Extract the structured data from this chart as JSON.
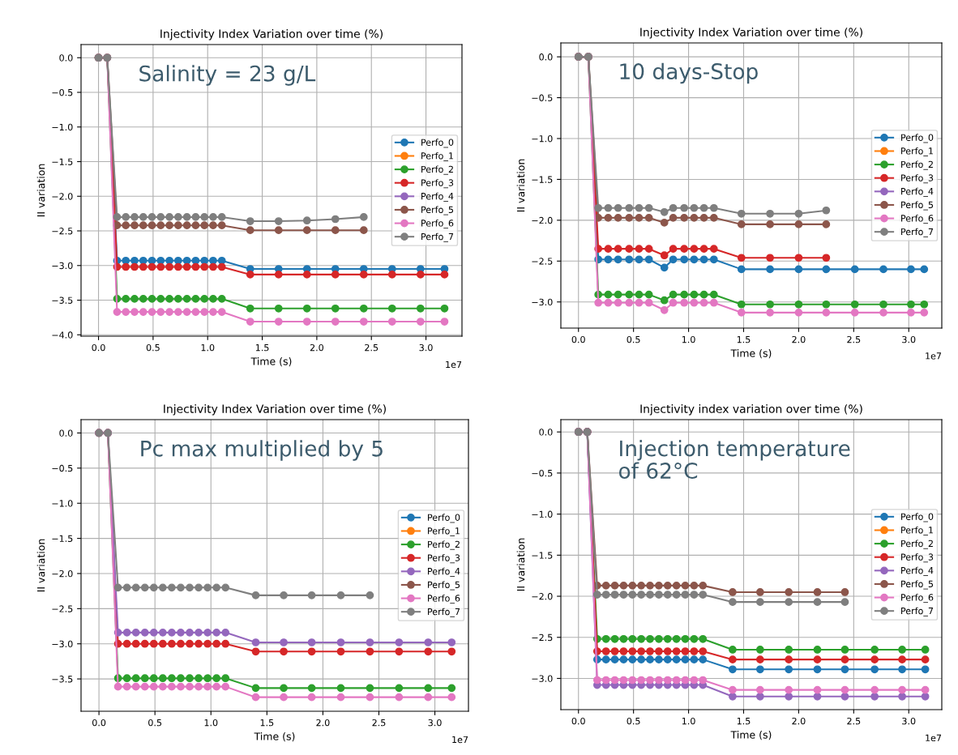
{
  "chart_data": [
    {
      "type": "line",
      "title": "Injectivity Index Variation over time (%)",
      "xlabel": "Time (s)",
      "ylabel": "II variation",
      "marker": "circle",
      "line_style": "solid",
      "grid": true,
      "legend": "right",
      "annotations": [
        "Salinity = 23 g/L",
        "1e7"
      ],
      "x": [
        0,
        0.08,
        0.17,
        0.25,
        0.33,
        0.41,
        0.49,
        0.57,
        0.65,
        0.73,
        0.81,
        0.89,
        0.97,
        1.05,
        1.13,
        1.39,
        1.65,
        1.91,
        2.17,
        2.43,
        2.69,
        2.95,
        3.17
      ],
      "xlim": [
        -0.16,
        3.33
      ],
      "ylim": [
        -4.02,
        0.19
      ],
      "xticks": [
        {
          "value": 0,
          "label": "0.0"
        },
        {
          "value": 0.5,
          "label": "0.5"
        },
        {
          "value": 1,
          "label": "1.0"
        },
        {
          "value": 1.5,
          "label": "1.5"
        },
        {
          "value": 2,
          "label": "2.0"
        },
        {
          "value": 2.5,
          "label": "2.5"
        },
        {
          "value": 3,
          "label": "3.0"
        }
      ],
      "yticks": [
        {
          "value": 0,
          "label": "0.0"
        },
        {
          "value": -0.5,
          "label": "−0.5"
        },
        {
          "value": -1,
          "label": "−1.0"
        },
        {
          "value": -1.5,
          "label": "−1.5"
        },
        {
          "value": -2,
          "label": "−2.0"
        },
        {
          "value": -2.5,
          "label": "−2.5"
        },
        {
          "value": -3,
          "label": "−3.0"
        },
        {
          "value": -3.5,
          "label": "−3.5"
        },
        {
          "value": -4,
          "label": "−4.0"
        }
      ],
      "series": [
        {
          "name": "Perfo_0",
          "color": "#1f77b4",
          "values": [
            0,
            0,
            -2.93,
            -2.93,
            -2.93,
            -2.93,
            -2.93,
            -2.93,
            -2.93,
            -2.93,
            -2.93,
            -2.93,
            -2.93,
            -2.93,
            -2.93,
            -3.05,
            -3.05,
            -3.05,
            -3.05,
            -3.05,
            -3.05,
            -3.05,
            -3.05
          ]
        },
        {
          "name": "Perfo_1",
          "color": "#ff7f0e",
          "values": [
            null,
            null,
            null,
            null,
            null,
            null,
            null,
            null,
            null,
            null,
            null,
            null,
            null,
            null,
            null,
            null,
            null,
            null,
            null,
            null,
            null,
            null,
            null
          ]
        },
        {
          "name": "Perfo_2",
          "color": "#2ca02c",
          "values": [
            0,
            0,
            -3.48,
            -3.48,
            -3.48,
            -3.48,
            -3.48,
            -3.48,
            -3.48,
            -3.48,
            -3.48,
            -3.48,
            -3.48,
            -3.48,
            -3.48,
            -3.62,
            -3.62,
            -3.62,
            -3.62,
            -3.62,
            -3.62,
            -3.62,
            -3.62
          ]
        },
        {
          "name": "Perfo_3",
          "color": "#d62728",
          "values": [
            0,
            0,
            -3.02,
            -3.02,
            -3.02,
            -3.02,
            -3.02,
            -3.02,
            -3.02,
            -3.02,
            -3.02,
            -3.02,
            -3.02,
            -3.02,
            -3.02,
            -3.13,
            -3.13,
            -3.13,
            -3.13,
            -3.13,
            -3.13,
            -3.13,
            -3.13
          ]
        },
        {
          "name": "Perfo_4",
          "color": "#9467bd",
          "values": [
            null,
            null,
            null,
            null,
            null,
            null,
            null,
            null,
            null,
            null,
            null,
            null,
            null,
            null,
            null,
            null,
            null,
            null,
            null,
            null,
            null,
            null,
            null
          ]
        },
        {
          "name": "Perfo_5",
          "color": "#8c564b",
          "values": [
            0,
            0,
            -2.42,
            -2.42,
            -2.42,
            -2.42,
            -2.42,
            -2.42,
            -2.42,
            -2.42,
            -2.42,
            -2.42,
            -2.42,
            -2.42,
            -2.42,
            -2.49,
            -2.49,
            -2.49,
            -2.49,
            -2.49,
            null,
            null,
            null
          ]
        },
        {
          "name": "Perfo_6",
          "color": "#e377c2",
          "values": [
            0,
            0,
            -3.67,
            -3.67,
            -3.67,
            -3.67,
            -3.67,
            -3.67,
            -3.67,
            -3.67,
            -3.67,
            -3.67,
            -3.67,
            -3.67,
            -3.67,
            -3.81,
            -3.81,
            -3.81,
            -3.81,
            -3.81,
            -3.81,
            -3.81,
            -3.81
          ]
        },
        {
          "name": "Perfo_7",
          "color": "#7f7f7f",
          "values": [
            0,
            0,
            -2.3,
            -2.3,
            -2.3,
            -2.3,
            -2.3,
            -2.3,
            -2.3,
            -2.3,
            -2.3,
            -2.3,
            -2.3,
            -2.3,
            -2.3,
            -2.36,
            -2.36,
            -2.35,
            -2.33,
            -2.3,
            null,
            null,
            null
          ]
        }
      ]
    },
    {
      "type": "line",
      "title": "Injectivity Index Variation over time (%)",
      "xlabel": "Time (s)",
      "ylabel": "II variation",
      "marker": "circle",
      "line_style": "solid",
      "grid": true,
      "legend": "right",
      "annotations": [
        "10 days-Stop",
        "1e7"
      ],
      "x": [
        0,
        0.09,
        0.18,
        0.27,
        0.36,
        0.46,
        0.55,
        0.64,
        0.78,
        0.86,
        0.96,
        1.05,
        1.14,
        1.23,
        1.48,
        1.74,
        2.0,
        2.25,
        2.51,
        2.77,
        3.02,
        3.14
      ],
      "xlim": [
        -0.16,
        3.3
      ],
      "ylim": [
        -3.32,
        0.17
      ],
      "xticks": [
        {
          "value": 0,
          "label": "0.0"
        },
        {
          "value": 0.5,
          "label": "0.5"
        },
        {
          "value": 1,
          "label": "1.0"
        },
        {
          "value": 1.5,
          "label": "1.5"
        },
        {
          "value": 2,
          "label": "2.0"
        },
        {
          "value": 2.5,
          "label": "2.5"
        },
        {
          "value": 3,
          "label": "3.0"
        }
      ],
      "yticks": [
        {
          "value": 0,
          "label": "0.0"
        },
        {
          "value": -0.5,
          "label": "−0.5"
        },
        {
          "value": -1,
          "label": "−1.0"
        },
        {
          "value": -1.5,
          "label": "−1.5"
        },
        {
          "value": -2,
          "label": "−2.0"
        },
        {
          "value": -2.5,
          "label": "−2.5"
        },
        {
          "value": -3,
          "label": "−3.0"
        }
      ],
      "series": [
        {
          "name": "Perfo_0",
          "color": "#1f77b4",
          "values": [
            0,
            0,
            -2.48,
            -2.48,
            -2.48,
            -2.48,
            -2.48,
            -2.48,
            -2.58,
            -2.48,
            -2.48,
            -2.48,
            -2.48,
            -2.48,
            -2.6,
            -2.6,
            -2.6,
            -2.6,
            -2.6,
            -2.6,
            -2.6,
            -2.6
          ]
        },
        {
          "name": "Perfo_1",
          "color": "#ff7f0e",
          "values": [
            null,
            null,
            null,
            null,
            null,
            null,
            null,
            null,
            null,
            null,
            null,
            null,
            null,
            null,
            null,
            null,
            null,
            null,
            null,
            null,
            null,
            null
          ]
        },
        {
          "name": "Perfo_2",
          "color": "#2ca02c",
          "values": [
            0,
            0,
            -2.91,
            -2.91,
            -2.91,
            -2.91,
            -2.91,
            -2.91,
            -2.98,
            -2.91,
            -2.91,
            -2.91,
            -2.91,
            -2.91,
            -3.03,
            -3.03,
            -3.03,
            -3.03,
            -3.03,
            -3.03,
            -3.03,
            -3.03
          ]
        },
        {
          "name": "Perfo_3",
          "color": "#d62728",
          "values": [
            0,
            0,
            -2.35,
            -2.35,
            -2.35,
            -2.35,
            -2.35,
            -2.35,
            -2.43,
            -2.35,
            -2.35,
            -2.35,
            -2.35,
            -2.35,
            -2.46,
            -2.46,
            -2.46,
            -2.46,
            null,
            null,
            null,
            null
          ]
        },
        {
          "name": "Perfo_4",
          "color": "#9467bd",
          "values": [
            null,
            null,
            null,
            null,
            null,
            null,
            null,
            null,
            null,
            null,
            null,
            null,
            null,
            null,
            null,
            null,
            null,
            null,
            null,
            null,
            null,
            null
          ]
        },
        {
          "name": "Perfo_5",
          "color": "#8c564b",
          "values": [
            0,
            0,
            -1.97,
            -1.97,
            -1.97,
            -1.97,
            -1.97,
            -1.97,
            -2.03,
            -1.97,
            -1.97,
            -1.97,
            -1.97,
            -1.97,
            -2.05,
            -2.05,
            -2.05,
            -2.05,
            null,
            null,
            null,
            null
          ]
        },
        {
          "name": "Perfo_6",
          "color": "#e377c2",
          "values": [
            0,
            0,
            -3.01,
            -3.01,
            -3.01,
            -3.01,
            -3.01,
            -3.01,
            -3.1,
            -3.01,
            -3.01,
            -3.01,
            -3.01,
            -3.01,
            -3.13,
            -3.13,
            -3.13,
            -3.13,
            -3.13,
            -3.13,
            -3.13,
            -3.13
          ]
        },
        {
          "name": "Perfo_7",
          "color": "#7f7f7f",
          "values": [
            0,
            0,
            -1.85,
            -1.85,
            -1.85,
            -1.85,
            -1.85,
            -1.85,
            -1.9,
            -1.85,
            -1.85,
            -1.85,
            -1.85,
            -1.85,
            -1.92,
            -1.92,
            -1.92,
            -1.88,
            null,
            null,
            null,
            null
          ]
        }
      ]
    },
    {
      "type": "line",
      "title": "Injectivity Index Variation over time (%)",
      "xlabel": "Time (s)",
      "ylabel": "II variation",
      "marker": "circle",
      "line_style": "solid",
      "grid": true,
      "legend": "right",
      "annotations": [
        "Pc max multiplied by 5",
        "1e7"
      ],
      "x": [
        0,
        0.08,
        0.17,
        0.25,
        0.33,
        0.41,
        0.49,
        0.57,
        0.65,
        0.73,
        0.81,
        0.89,
        0.97,
        1.05,
        1.13,
        1.4,
        1.65,
        1.9,
        2.16,
        2.42,
        2.68,
        2.94,
        3.15
      ],
      "xlim": [
        -0.16,
        3.3
      ],
      "ylim": [
        -3.96,
        0.19
      ],
      "xticks": [
        {
          "value": 0,
          "label": "0.0"
        },
        {
          "value": 0.5,
          "label": "0.5"
        },
        {
          "value": 1,
          "label": "1.0"
        },
        {
          "value": 1.5,
          "label": "1.5"
        },
        {
          "value": 2,
          "label": "2.0"
        },
        {
          "value": 2.5,
          "label": "2.5"
        },
        {
          "value": 3,
          "label": "3.0"
        }
      ],
      "yticks": [
        {
          "value": 0,
          "label": "0.0"
        },
        {
          "value": -0.5,
          "label": "−0.5"
        },
        {
          "value": -1,
          "label": "−1.0"
        },
        {
          "value": -1.5,
          "label": "−1.5"
        },
        {
          "value": -2,
          "label": "−2.0"
        },
        {
          "value": -2.5,
          "label": "−2.5"
        },
        {
          "value": -3,
          "label": "−3.0"
        },
        {
          "value": -3.5,
          "label": "−3.5"
        }
      ],
      "series": [
        {
          "name": "Perfo_0",
          "color": "#1f77b4",
          "values": [
            null,
            null,
            null,
            null,
            null,
            null,
            null,
            null,
            null,
            null,
            null,
            null,
            null,
            null,
            null,
            null,
            null,
            null,
            null,
            null,
            null,
            null,
            null
          ]
        },
        {
          "name": "Perfo_1",
          "color": "#ff7f0e",
          "values": [
            null,
            null,
            null,
            null,
            null,
            null,
            null,
            null,
            null,
            null,
            null,
            null,
            null,
            null,
            null,
            null,
            null,
            null,
            null,
            null,
            null,
            null,
            null
          ]
        },
        {
          "name": "Perfo_2",
          "color": "#2ca02c",
          "values": [
            0,
            0,
            -3.49,
            -3.49,
            -3.49,
            -3.49,
            -3.49,
            -3.49,
            -3.49,
            -3.49,
            -3.49,
            -3.49,
            -3.49,
            -3.49,
            -3.49,
            -3.63,
            -3.63,
            -3.63,
            -3.63,
            -3.63,
            -3.63,
            -3.63,
            -3.63
          ]
        },
        {
          "name": "Perfo_3",
          "color": "#d62728",
          "values": [
            0,
            0,
            -3.0,
            -3.0,
            -3.0,
            -3.0,
            -3.0,
            -3.0,
            -3.0,
            -3.0,
            -3.0,
            -3.0,
            -3.0,
            -3.0,
            -3.0,
            -3.11,
            -3.11,
            -3.11,
            -3.11,
            -3.11,
            -3.11,
            -3.11,
            -3.11
          ]
        },
        {
          "name": "Perfo_4",
          "color": "#9467bd",
          "values": [
            0,
            0,
            -2.84,
            -2.84,
            -2.84,
            -2.84,
            -2.84,
            -2.84,
            -2.84,
            -2.84,
            -2.84,
            -2.84,
            -2.84,
            -2.84,
            -2.84,
            -2.98,
            -2.98,
            -2.98,
            -2.98,
            -2.98,
            -2.98,
            -2.98,
            -2.98
          ]
        },
        {
          "name": "Perfo_5",
          "color": "#8c564b",
          "values": [
            null,
            null,
            null,
            null,
            null,
            null,
            null,
            null,
            null,
            null,
            null,
            null,
            null,
            null,
            null,
            null,
            null,
            null,
            null,
            null,
            null,
            null,
            null
          ]
        },
        {
          "name": "Perfo_6",
          "color": "#e377c2",
          "values": [
            0,
            0,
            -3.61,
            -3.61,
            -3.61,
            -3.61,
            -3.61,
            -3.61,
            -3.61,
            -3.61,
            -3.61,
            -3.61,
            -3.61,
            -3.61,
            -3.61,
            -3.76,
            -3.76,
            -3.76,
            -3.76,
            -3.76,
            -3.76,
            -3.76,
            -3.76
          ]
        },
        {
          "name": "Perfo_7",
          "color": "#7f7f7f",
          "values": [
            0,
            0,
            -2.2,
            -2.2,
            -2.2,
            -2.2,
            -2.2,
            -2.2,
            -2.2,
            -2.2,
            -2.2,
            -2.2,
            -2.2,
            -2.2,
            -2.2,
            -2.31,
            -2.31,
            -2.31,
            -2.31,
            -2.31,
            null,
            null,
            null
          ]
        }
      ]
    },
    {
      "type": "line",
      "title": "Injectivity index variation over time (%)",
      "xlabel": "Time (s)",
      "ylabel": "II variation",
      "marker": "circle",
      "line_style": "solid",
      "grid": true,
      "legend": "right",
      "annotations": [
        "Injection temperature\nof 62°C",
        "1e7"
      ],
      "x": [
        0,
        0.08,
        0.17,
        0.25,
        0.33,
        0.41,
        0.49,
        0.57,
        0.65,
        0.73,
        0.81,
        0.89,
        0.97,
        1.05,
        1.13,
        1.4,
        1.65,
        1.91,
        2.17,
        2.42,
        2.69,
        2.94,
        3.15
      ],
      "xlim": [
        -0.16,
        3.3
      ],
      "ylim": [
        -3.38,
        0.15
      ],
      "xticks": [
        {
          "value": 0,
          "label": "0.0"
        },
        {
          "value": 0.5,
          "label": "0.5"
        },
        {
          "value": 1,
          "label": "1.0"
        },
        {
          "value": 1.5,
          "label": "1.5"
        },
        {
          "value": 2,
          "label": "2.0"
        },
        {
          "value": 2.5,
          "label": "2.5"
        },
        {
          "value": 3,
          "label": "3.0"
        }
      ],
      "yticks": [
        {
          "value": 0,
          "label": "0.0"
        },
        {
          "value": -0.5,
          "label": "−0.5"
        },
        {
          "value": -1,
          "label": "−1.0"
        },
        {
          "value": -1.5,
          "label": "−1.5"
        },
        {
          "value": -2,
          "label": "−2.0"
        },
        {
          "value": -2.5,
          "label": "−2.5"
        },
        {
          "value": -3,
          "label": "−3.0"
        }
      ],
      "series": [
        {
          "name": "Perfo_0",
          "color": "#1f77b4",
          "values": [
            0,
            0,
            -2.77,
            -2.77,
            -2.77,
            -2.77,
            -2.77,
            -2.77,
            -2.77,
            -2.77,
            -2.77,
            -2.77,
            -2.77,
            -2.77,
            -2.77,
            -2.89,
            -2.89,
            -2.89,
            -2.89,
            -2.89,
            -2.89,
            -2.89,
            -2.89
          ]
        },
        {
          "name": "Perfo_1",
          "color": "#ff7f0e",
          "values": [
            null,
            null,
            null,
            null,
            null,
            null,
            null,
            null,
            null,
            null,
            null,
            null,
            null,
            null,
            null,
            null,
            null,
            null,
            null,
            null,
            null,
            null,
            null
          ]
        },
        {
          "name": "Perfo_2",
          "color": "#2ca02c",
          "values": [
            0,
            0,
            -2.52,
            -2.52,
            -2.52,
            -2.52,
            -2.52,
            -2.52,
            -2.52,
            -2.52,
            -2.52,
            -2.52,
            -2.52,
            -2.52,
            -2.52,
            -2.65,
            -2.65,
            -2.65,
            -2.65,
            -2.65,
            -2.65,
            -2.65,
            -2.65
          ]
        },
        {
          "name": "Perfo_3",
          "color": "#d62728",
          "values": [
            0,
            0,
            -2.67,
            -2.67,
            -2.67,
            -2.67,
            -2.67,
            -2.67,
            -2.67,
            -2.67,
            -2.67,
            -2.67,
            -2.67,
            -2.67,
            -2.67,
            -2.77,
            -2.77,
            -2.77,
            -2.77,
            -2.77,
            -2.77,
            -2.77,
            -2.77
          ]
        },
        {
          "name": "Perfo_4",
          "color": "#9467bd",
          "values": [
            0,
            0,
            -3.08,
            -3.08,
            -3.08,
            -3.08,
            -3.08,
            -3.08,
            -3.08,
            -3.08,
            -3.08,
            -3.08,
            -3.08,
            -3.08,
            -3.08,
            -3.22,
            -3.22,
            -3.22,
            -3.22,
            -3.22,
            -3.22,
            -3.22,
            -3.22
          ]
        },
        {
          "name": "Perfo_5",
          "color": "#8c564b",
          "values": [
            0,
            0,
            -1.87,
            -1.87,
            -1.87,
            -1.87,
            -1.87,
            -1.87,
            -1.87,
            -1.87,
            -1.87,
            -1.87,
            -1.87,
            -1.87,
            -1.87,
            -1.95,
            -1.95,
            -1.95,
            -1.95,
            -1.95,
            null,
            null,
            null
          ]
        },
        {
          "name": "Perfo_6",
          "color": "#e377c2",
          "values": [
            0,
            0,
            -3.02,
            -3.02,
            -3.02,
            -3.02,
            -3.02,
            -3.02,
            -3.02,
            -3.02,
            -3.02,
            -3.02,
            -3.02,
            -3.02,
            -3.02,
            -3.14,
            -3.14,
            -3.14,
            -3.14,
            -3.14,
            -3.14,
            -3.14,
            -3.14
          ]
        },
        {
          "name": "Perfo_7",
          "color": "#7f7f7f",
          "values": [
            0,
            0,
            -1.98,
            -1.98,
            -1.98,
            -1.98,
            -1.98,
            -1.98,
            -1.98,
            -1.98,
            -1.98,
            -1.98,
            -1.98,
            -1.98,
            -1.98,
            -2.07,
            -2.07,
            -2.07,
            -2.07,
            -2.07,
            null,
            null,
            null
          ]
        }
      ]
    }
  ]
}
